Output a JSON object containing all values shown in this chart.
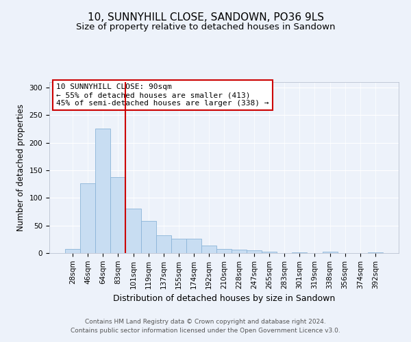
{
  "title": "10, SUNNYHILL CLOSE, SANDOWN, PO36 9LS",
  "subtitle": "Size of property relative to detached houses in Sandown",
  "xlabel": "Distribution of detached houses by size in Sandown",
  "ylabel": "Number of detached properties",
  "bar_color": "#c8ddf2",
  "bar_edge_color": "#8ab4d8",
  "background_color": "#edf2fa",
  "grid_color": "#ffffff",
  "categories": [
    "28sqm",
    "46sqm",
    "64sqm",
    "83sqm",
    "101sqm",
    "119sqm",
    "137sqm",
    "155sqm",
    "174sqm",
    "192sqm",
    "210sqm",
    "228sqm",
    "247sqm",
    "265sqm",
    "283sqm",
    "301sqm",
    "319sqm",
    "338sqm",
    "356sqm",
    "374sqm",
    "392sqm"
  ],
  "values": [
    7,
    127,
    226,
    138,
    80,
    58,
    32,
    26,
    26,
    14,
    8,
    6,
    5,
    3,
    0,
    1,
    0,
    3,
    0,
    0,
    1
  ],
  "vline_x": 3.5,
  "vline_color": "#cc0000",
  "annotation_line1": "10 SUNNYHILL CLOSE: 90sqm",
  "annotation_line2": "← 55% of detached houses are smaller (413)",
  "annotation_line3": "45% of semi-detached houses are larger (338) →",
  "ylim": [
    0,
    310
  ],
  "yticks": [
    0,
    50,
    100,
    150,
    200,
    250,
    300
  ],
  "footer_line1": "Contains HM Land Registry data © Crown copyright and database right 2024.",
  "footer_line2": "Contains public sector information licensed under the Open Government Licence v3.0.",
  "title_fontsize": 11,
  "subtitle_fontsize": 9.5,
  "xlabel_fontsize": 9,
  "ylabel_fontsize": 8.5,
  "tick_fontsize": 7.5,
  "annotation_fontsize": 8,
  "footer_fontsize": 6.5
}
